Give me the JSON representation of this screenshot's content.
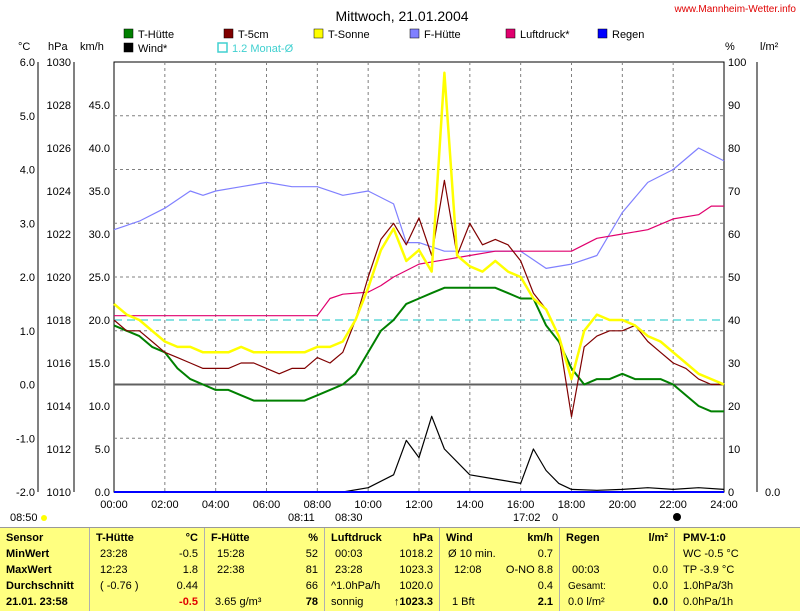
{
  "title": "Mittwoch, 21.01.2004",
  "site": "www.Mannheim-Wetter.info",
  "units": {
    "left1": "°C",
    "left2": "hPa",
    "left3": "km/h",
    "right1": "%",
    "right2": "l/m²"
  },
  "legend": [
    {
      "name": "T-Hütte",
      "color": "#008000",
      "style": "solid"
    },
    {
      "name": "T-5cm",
      "color": "#800000",
      "style": "solid"
    },
    {
      "name": "T-Sonne",
      "color": "#ffff00",
      "style": "solid"
    },
    {
      "name": "F-Hütte",
      "color": "#8080ff",
      "style": "solid"
    },
    {
      "name": "Luftdruck*",
      "color": "#e0006e",
      "style": "solid"
    },
    {
      "name": "Regen",
      "color": "#0000ff",
      "style": "solid"
    },
    {
      "name": "Wind*",
      "color": "#000000",
      "style": "solid"
    },
    {
      "name": "1.2 Monat-Ø",
      "color": "#40d0d0",
      "style": "dashed"
    }
  ],
  "axes": {
    "temp_ticks": [
      "6.0",
      "5.0",
      "4.0",
      "3.0",
      "2.0",
      "1.0",
      "0.0",
      "-1.0",
      "-2.0"
    ],
    "hpa_ticks": [
      "1030",
      "1028",
      "1026",
      "1024",
      "1022",
      "1020",
      "1018",
      "1016",
      "1014",
      "1012",
      "1010"
    ],
    "wind_ticks": [
      "45.0",
      "40.0",
      "35.0",
      "30.0",
      "25.0",
      "20.0",
      "15.0",
      "10.0",
      "5.0",
      "0.0"
    ],
    "pct_ticks": [
      "100",
      "90",
      "80",
      "70",
      "60",
      "50",
      "40",
      "30",
      "20",
      "10",
      "0"
    ],
    "rain_ticks": [
      "0.0"
    ],
    "x_ticks": [
      "00:00",
      "02:00",
      "04:00",
      "06:00",
      "08:00",
      "10:00",
      "12:00",
      "14:00",
      "16:00",
      "18:00",
      "20:00",
      "22:00",
      "24:00"
    ],
    "temp_range": [
      -2,
      6
    ],
    "hpa_range": [
      1010,
      1030
    ],
    "wind_range": [
      0,
      50
    ],
    "pct_range": [
      0,
      100
    ]
  },
  "bottom_labels": {
    "left_time": "08:50",
    "sunrise": "08:11",
    "sunrise2": "08:30",
    "sunset": "17:02",
    "zero": "0"
  },
  "chart_data": {
    "type": "line",
    "title": "Mittwoch, 21.01.2004",
    "x_unit": "hours",
    "x_range": [
      0,
      24
    ],
    "grid": true,
    "legend_position": "top",
    "series": [
      {
        "name": "T-Hütte",
        "axis": "°C",
        "color": "#008000",
        "x": [
          0,
          0.5,
          1,
          1.5,
          2,
          2.5,
          3,
          3.5,
          4,
          4.5,
          5,
          5.5,
          6,
          6.5,
          7,
          7.5,
          8,
          8.5,
          9,
          9.5,
          10,
          10.5,
          11,
          11.5,
          12,
          12.5,
          13,
          13.5,
          14,
          14.5,
          15,
          15.5,
          16,
          16.5,
          17,
          17.5,
          18,
          18.5,
          19,
          19.5,
          20,
          20.5,
          21,
          21.5,
          22,
          22.5,
          23,
          23.5,
          24
        ],
        "y": [
          1.1,
          1.0,
          0.9,
          0.7,
          0.6,
          0.3,
          0.1,
          0.0,
          -0.1,
          -0.1,
          -0.2,
          -0.3,
          -0.3,
          -0.3,
          -0.3,
          -0.3,
          -0.2,
          -0.1,
          0.0,
          0.2,
          0.6,
          1.0,
          1.2,
          1.5,
          1.6,
          1.7,
          1.8,
          1.8,
          1.8,
          1.8,
          1.8,
          1.7,
          1.6,
          1.6,
          1.1,
          0.8,
          0.3,
          0.0,
          0.1,
          0.1,
          0.2,
          0.1,
          0.1,
          0.1,
          0.0,
          -0.2,
          -0.4,
          -0.5,
          -0.5
        ]
      },
      {
        "name": "T-5cm",
        "axis": "°C",
        "color": "#800000",
        "x": [
          0,
          0.5,
          1,
          1.5,
          2,
          2.5,
          3,
          3.5,
          4,
          4.5,
          5,
          5.5,
          6,
          6.5,
          7,
          7.5,
          8,
          8.5,
          9,
          9.5,
          10,
          10.5,
          11,
          11.5,
          12,
          12.5,
          13,
          13.5,
          14,
          14.5,
          15,
          15.5,
          16,
          16.5,
          17,
          17.5,
          18,
          18.5,
          19,
          19.5,
          20,
          20.5,
          21,
          21.5,
          22,
          22.5,
          23,
          23.5,
          24
        ],
        "y": [
          1.2,
          1.0,
          1.0,
          0.8,
          0.6,
          0.5,
          0.4,
          0.3,
          0.3,
          0.3,
          0.4,
          0.4,
          0.3,
          0.2,
          0.3,
          0.3,
          0.5,
          0.4,
          0.6,
          1.2,
          2.0,
          2.7,
          3.0,
          2.6,
          3.1,
          2.4,
          3.8,
          2.4,
          3.0,
          2.6,
          2.7,
          2.6,
          2.3,
          1.7,
          1.4,
          0.9,
          -0.6,
          0.7,
          0.9,
          1.0,
          1.0,
          1.1,
          0.8,
          0.6,
          0.4,
          0.3,
          0.1,
          0.0,
          0.0
        ]
      },
      {
        "name": "T-Sonne",
        "axis": "°C",
        "color": "#ffff00",
        "x": [
          0,
          0.5,
          1,
          1.5,
          2,
          2.5,
          3,
          3.5,
          4,
          4.5,
          5,
          5.5,
          6,
          6.5,
          7,
          7.5,
          8,
          8.5,
          9,
          9.5,
          10,
          10.5,
          11,
          11.5,
          12,
          12.5,
          13,
          13.5,
          14,
          14.5,
          15,
          15.5,
          16,
          16.5,
          17,
          17.5,
          18,
          18.5,
          19,
          19.5,
          20,
          20.5,
          21,
          21.5,
          22,
          22.5,
          23,
          23.5,
          24
        ],
        "y": [
          1.5,
          1.3,
          1.2,
          1.0,
          0.8,
          0.7,
          0.7,
          0.6,
          0.6,
          0.6,
          0.7,
          0.6,
          0.6,
          0.6,
          0.6,
          0.6,
          0.7,
          0.7,
          0.8,
          1.2,
          1.8,
          2.5,
          2.9,
          2.3,
          2.5,
          2.1,
          5.8,
          2.4,
          2.2,
          2.1,
          2.3,
          2.1,
          2.0,
          1.6,
          1.4,
          0.9,
          0.1,
          1.0,
          1.3,
          1.2,
          1.2,
          1.1,
          0.9,
          0.8,
          0.6,
          0.4,
          0.2,
          0.1,
          0.0
        ]
      },
      {
        "name": "F-Hütte",
        "axis": "%",
        "color": "#8080ff",
        "x": [
          0,
          1,
          2,
          3,
          3.5,
          4,
          5,
          6,
          7,
          8,
          9,
          10,
          11,
          11.5,
          12,
          13,
          14,
          15,
          16,
          17,
          18,
          19,
          20,
          21,
          22,
          23,
          24
        ],
        "y": [
          61,
          63,
          66,
          70,
          69,
          70,
          71,
          72,
          71,
          71,
          69,
          70,
          67,
          58,
          58,
          56,
          56,
          56,
          56,
          52,
          53,
          55,
          65,
          72,
          75,
          80,
          77
        ]
      },
      {
        "name": "Luftdruck*",
        "axis": "hPa",
        "color": "#e0006e",
        "x": [
          0,
          1,
          2,
          3,
          4,
          5,
          6,
          7,
          8,
          8.5,
          9,
          10,
          10.5,
          11,
          12,
          13,
          14,
          15,
          16,
          17,
          18,
          19,
          20,
          21,
          22,
          23,
          23.5,
          24
        ],
        "y": [
          1018.2,
          1018.2,
          1018.2,
          1018.2,
          1018.2,
          1018.2,
          1018.2,
          1018.2,
          1018.2,
          1019.0,
          1019.2,
          1019.3,
          1019.6,
          1020.0,
          1020.6,
          1020.8,
          1021.0,
          1021.2,
          1021.2,
          1021.2,
          1021.2,
          1021.8,
          1022.0,
          1022.2,
          1022.7,
          1022.9,
          1023.3,
          1023.3
        ]
      },
      {
        "name": "Wind*",
        "axis": "km/h",
        "color": "#000000",
        "x": [
          0,
          8,
          9,
          10,
          11,
          11.5,
          12,
          12.5,
          13,
          14,
          15,
          16,
          16.5,
          17,
          17.5,
          18,
          19,
          20,
          21,
          22,
          23,
          24
        ],
        "y": [
          0,
          0,
          0,
          0.5,
          2.0,
          6.0,
          4.0,
          8.8,
          5.0,
          2.0,
          1.5,
          1.0,
          5.0,
          2.5,
          1.0,
          0.3,
          0.2,
          0.3,
          0.5,
          0.3,
          0.5,
          0.3
        ]
      },
      {
        "name": "1.2 Monat-Ø",
        "axis": "°C",
        "color": "#40d0d0",
        "x": [
          0,
          24
        ],
        "y": [
          1.2,
          1.2
        ]
      },
      {
        "name": "Regen",
        "axis": "l/m²",
        "color": "#0000ff",
        "x": [
          0,
          24
        ],
        "y": [
          0,
          0
        ]
      }
    ]
  },
  "table": {
    "col_sensor": {
      "header": "Sensor",
      "rows": [
        "MinWert",
        "MaxWert",
        "Durchschnitt",
        "21.01. 23:58"
      ]
    },
    "col_thuette": {
      "header": "T-Hütte",
      "unit": "°C",
      "rows": [
        [
          "23:28",
          "-0.5"
        ],
        [
          "12:23",
          "1.8"
        ],
        [
          "( -0.76 )",
          "0.44"
        ],
        [
          "",
          "-0.5"
        ]
      ]
    },
    "col_fhuette": {
      "header": "F-Hütte",
      "unit": "%",
      "rows": [
        [
          "15:28",
          "52"
        ],
        [
          "22:38",
          "81"
        ],
        [
          "",
          "66"
        ],
        [
          "3.65 g/m³",
          "78"
        ]
      ]
    },
    "col_luftdruck": {
      "header": "Luftdruck",
      "unit": "hPa",
      "rows": [
        [
          "00:03",
          "1018.2"
        ],
        [
          "23:28",
          "1023.3"
        ],
        [
          "^1.0hPa/h",
          "1020.0"
        ],
        [
          "sonnig",
          "↑1023.3"
        ]
      ]
    },
    "col_wind": {
      "header": "Wind",
      "unit": "km/h",
      "rows": [
        [
          "Ø 10 min.",
          "0.7"
        ],
        [
          "12:08",
          "O-NO 8.8"
        ],
        [
          "",
          "0.4"
        ],
        [
          "1 Bft",
          "2.1"
        ]
      ]
    },
    "col_regen": {
      "header": "Regen",
      "unit": "l/m²",
      "rows": [
        [
          "",
          ""
        ],
        [
          "00:03",
          "0.0"
        ],
        [
          "Gesamt:",
          "0.0"
        ],
        [
          "0.0 l/m²",
          "0.0"
        ]
      ]
    },
    "col_pmv": {
      "header": "PMV-1:0",
      "rows": [
        "WC -0.5 °C",
        "TP -3.9 °C",
        "1.0hPa/3h",
        "0.0hPa/1h"
      ]
    }
  }
}
